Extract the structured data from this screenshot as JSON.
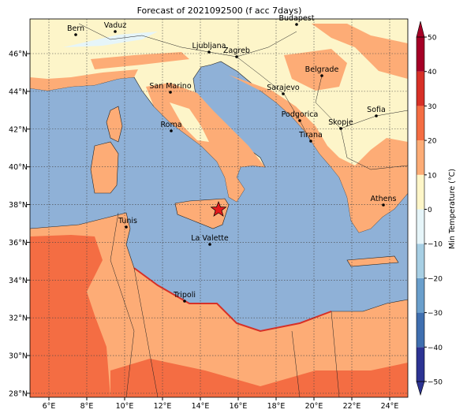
{
  "title": "Forecast of 2021092500 (f acc 7days)",
  "lon_ticks": [
    {
      "value": 6,
      "label": "6°E"
    },
    {
      "value": 8,
      "label": "8°E"
    },
    {
      "value": 10,
      "label": "10°E"
    },
    {
      "value": 12,
      "label": "12°E"
    },
    {
      "value": 14,
      "label": "14°E"
    },
    {
      "value": 16,
      "label": "16°E"
    },
    {
      "value": 18,
      "label": "18°E"
    },
    {
      "value": 20,
      "label": "20°E"
    },
    {
      "value": 22,
      "label": "22°E"
    },
    {
      "value": 24,
      "label": "24°E"
    }
  ],
  "lat_ticks": [
    {
      "value": 28,
      "label": "28°N"
    },
    {
      "value": 30,
      "label": "30°N"
    },
    {
      "value": 32,
      "label": "32°N"
    },
    {
      "value": 34,
      "label": "34°N"
    },
    {
      "value": 36,
      "label": "36°N"
    },
    {
      "value": 38,
      "label": "38°N"
    },
    {
      "value": 40,
      "label": "40°N"
    },
    {
      "value": 42,
      "label": "42°N"
    },
    {
      "value": 44,
      "label": "44°N"
    },
    {
      "value": 46,
      "label": "46°N"
    }
  ],
  "cities": [
    "Bern",
    "Vaduz",
    "Budapest",
    "Ljubljana",
    "Zagreb",
    "Belgrade",
    "San Marino",
    "Sarajevo",
    "Podgorica",
    "Sofia",
    "Skopje",
    "Roma",
    "Tirana",
    "Athens",
    "Tunis",
    "La Valette",
    "Tripoli"
  ],
  "colorbar": {
    "label": "Min Temperature (°C)",
    "ticks": [
      {
        "value": -50,
        "label": "−50"
      },
      {
        "value": -40,
        "label": "−40"
      },
      {
        "value": -30,
        "label": "−30"
      },
      {
        "value": -20,
        "label": "−20"
      },
      {
        "value": -10,
        "label": "−10"
      },
      0,
      10,
      20,
      30,
      40,
      50
    ],
    "colors": [
      "#2c3393",
      "#3f6fb0",
      "#6a9fcc",
      "#a7cfe4",
      "#e6f5f9",
      "#fef6c8",
      "#fdac76",
      "#f46d43",
      "#d73027",
      "#a50026"
    ]
  }
}
